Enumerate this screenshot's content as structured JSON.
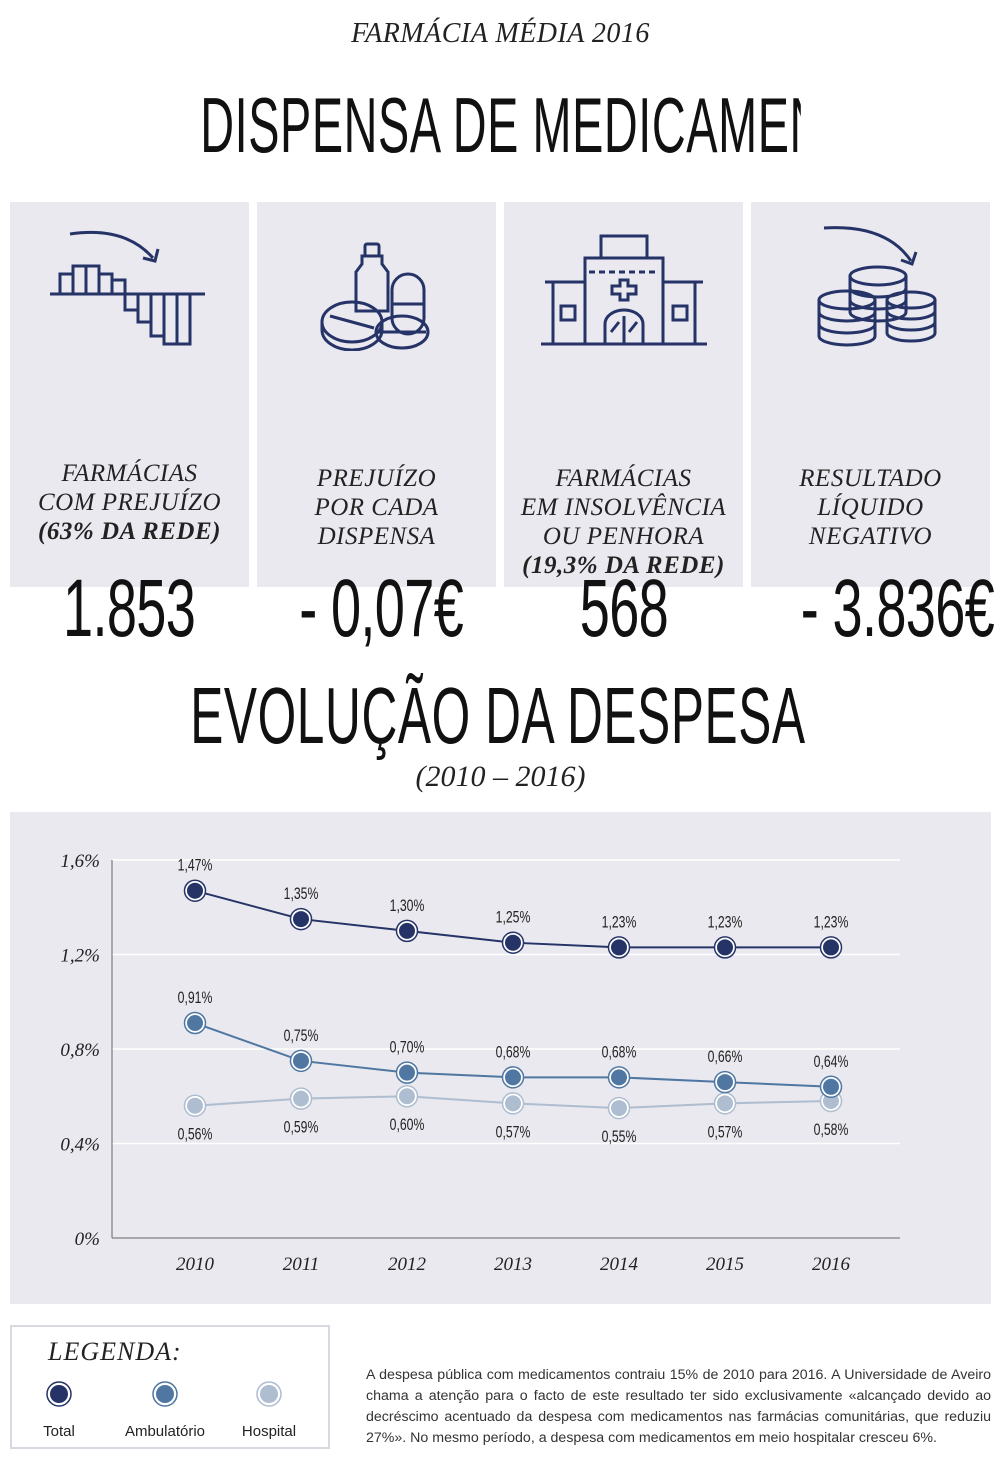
{
  "kicker": "FARMÁCIA MÉDIA 2016",
  "headline": "DISPENSA DE MEDICAMENTOS COMPARTICIPADOS",
  "cards": [
    {
      "icon": "declining-bars-icon",
      "value": "1.853",
      "caption": "FARMÁCIAS COM PREJUÍZO",
      "caption_lines": [
        "FARMÁCIAS",
        "COM PREJUÍZO"
      ],
      "note": "(63% DA REDE)"
    },
    {
      "icon": "medicine-pills-icon",
      "value": "- 0,07€",
      "caption_lines": [
        "PREJUÍZO",
        "POR CADA",
        "DISPENSA"
      ],
      "note": ""
    },
    {
      "icon": "pharmacy-building-icon",
      "value": "568",
      "caption_lines": [
        "FARMÁCIAS",
        "EM INSOLVÊNCIA",
        "OU PENHORA"
      ],
      "note": "(19,3% DA REDE)"
    },
    {
      "icon": "coin-stacks-icon",
      "value": "- 3.836€",
      "caption_lines": [
        "RESULTADO",
        "LÍQUIDO",
        "NEGATIVO"
      ],
      "note": ""
    }
  ],
  "section_title": "EVOLUÇÃO DA DESPESA COM MEDICAMENTOS",
  "section_period": "(2010 – 2016)",
  "chart_data": {
    "type": "line",
    "title": "EVOLUÇÃO DA DESPESA COM MEDICAMENTOS",
    "subtitle": "(2010 – 2016)",
    "x": [
      "2010",
      "2011",
      "2012",
      "2013",
      "2014",
      "2015",
      "2016"
    ],
    "ylim": [
      0,
      1.6
    ],
    "yticks": [
      0,
      0.4,
      0.8,
      1.2,
      1.6
    ],
    "ytick_labels": [
      "0%",
      "0,4%",
      "0,8%",
      "1,2%",
      "1,6%"
    ],
    "grid": true,
    "series": [
      {
        "name": "Total",
        "color": "#253367",
        "values": [
          1.47,
          1.35,
          1.3,
          1.25,
          1.23,
          1.23,
          1.23
        ],
        "labels": [
          "1,47%",
          "1,35%",
          "1,30%",
          "1,25%",
          "1,23%",
          "1,23%",
          "1,23%"
        ],
        "label_position": "above"
      },
      {
        "name": "Ambulatório",
        "color": "#4f77a2",
        "values": [
          0.91,
          0.75,
          0.7,
          0.68,
          0.68,
          0.66,
          0.64
        ],
        "labels": [
          "0,91%",
          "0,75%",
          "0,70%",
          "0,68%",
          "0,68%",
          "0,66%",
          "0,64%"
        ],
        "label_position": "above"
      },
      {
        "name": "Hospital",
        "color": "#aebdd0",
        "values": [
          0.56,
          0.59,
          0.6,
          0.57,
          0.55,
          0.57,
          0.58
        ],
        "labels": [
          "0,56%",
          "0,59%",
          "0,60%",
          "0,57%",
          "0,55%",
          "0,57%",
          "0,58%"
        ],
        "label_position": "below"
      }
    ]
  },
  "legend": {
    "title": "LEGENDA:",
    "items": [
      {
        "label": "Total",
        "color": "#253367"
      },
      {
        "label": "Ambulatório",
        "color": "#4f77a2"
      },
      {
        "label": "Hospital",
        "color": "#aebdd0"
      }
    ]
  },
  "note": "A despesa pública com medicamentos contraiu 15% de 2010 para 2016. A Universidade de Aveiro chama a atenção para o facto de este resultado ter sido exclusivamente «alcançado devido ao decréscimo acentuado da despesa com medicamentos nas farmácias comunitárias, que reduziu 27%». No mesmo período, a despesa com medicamentos em meio hospitalar cresceu 6%."
}
